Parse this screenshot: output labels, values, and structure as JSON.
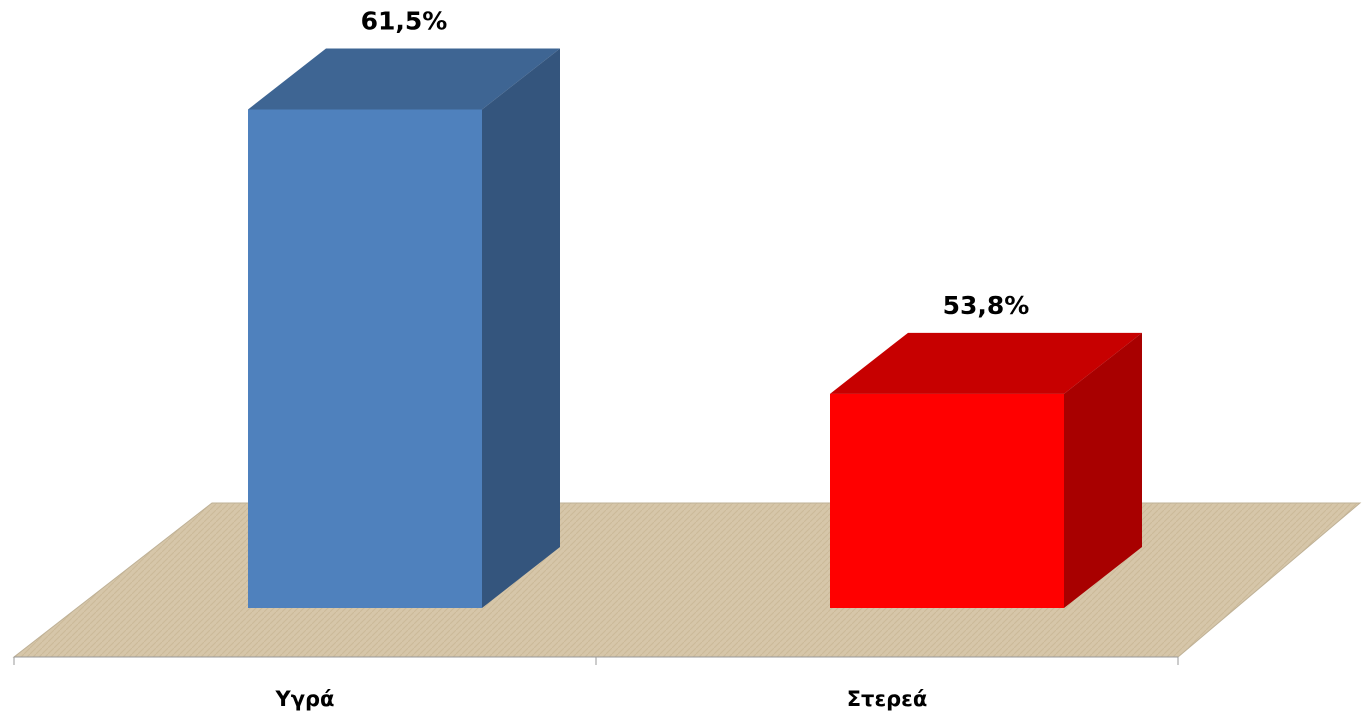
{
  "chart_data": {
    "type": "bar3d",
    "categories": [
      "Υγρά",
      "Στερεά"
    ],
    "values": [
      61.5,
      53.8
    ],
    "value_labels": [
      "61,5%",
      "53,8%"
    ],
    "colors": [
      "#4f81bd",
      "#ff0000"
    ],
    "ylim": [
      48,
      62
    ]
  }
}
